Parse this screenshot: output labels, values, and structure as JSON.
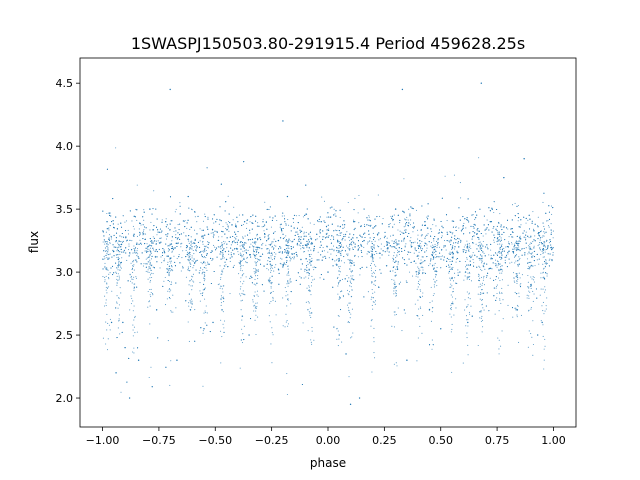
{
  "chart_data": {
    "type": "scatter",
    "title": "1SWASPJ150503.80-291915.4 Period 459628.25s",
    "xlabel": "phase",
    "ylabel": "flux",
    "xlim": [
      -1.1,
      1.1
    ],
    "ylim": [
      1.77,
      4.7
    ],
    "x_ticks": [
      -1.0,
      -0.75,
      -0.5,
      -0.25,
      0.0,
      0.25,
      0.5,
      0.75,
      1.0
    ],
    "x_tick_labels": [
      "−1.00",
      "−0.75",
      "−0.50",
      "−0.25",
      "0.00",
      "0.25",
      "0.50",
      "0.75",
      "1.00"
    ],
    "y_ticks": [
      2.0,
      2.5,
      3.0,
      3.5,
      4.0,
      4.5
    ],
    "y_tick_labels": [
      "2.0",
      "2.5",
      "3.0",
      "3.5",
      "4.0",
      "4.5"
    ],
    "grid": false,
    "legend": "none",
    "series": [
      {
        "color": "#1f77b4",
        "marker": "dot",
        "x_range": [
          -1.0,
          1.0
        ],
        "baseline_flux": 3.25,
        "band_flux_range": [
          2.95,
          3.55
        ],
        "x": [
          -0.98,
          -0.96,
          -0.94,
          -0.93,
          -0.91,
          -0.88,
          -0.86,
          -0.84,
          -0.8,
          -0.79,
          -0.76,
          -0.72,
          -0.7,
          -0.62,
          -0.61,
          -0.58,
          -0.55,
          -0.53,
          -0.47,
          -0.45,
          -0.41,
          -0.38,
          -0.37,
          -0.32,
          -0.28,
          -0.25,
          -0.22,
          -0.18,
          -0.15,
          -0.12,
          -0.08,
          -0.05,
          -0.03,
          0.02,
          0.05,
          0.08,
          0.1,
          0.12,
          0.16,
          0.2,
          0.22,
          0.26,
          0.3,
          0.33,
          0.37,
          0.41,
          0.43,
          0.47,
          0.5,
          0.53,
          0.55,
          0.58,
          0.61,
          0.64,
          0.66,
          0.68,
          0.72,
          0.76,
          0.8,
          0.84,
          0.87,
          0.9,
          0.93,
          0.96,
          0.99,
          -0.9,
          -0.67,
          -0.51,
          -0.35,
          -0.2,
          0.0,
          0.14,
          0.35,
          0.45,
          0.62,
          0.78,
          0.95
        ],
        "y": [
          3.4,
          2.6,
          2.2,
          3.1,
          2.6,
          2.0,
          3.3,
          2.3,
          3.2,
          3.5,
          2.7,
          3.4,
          4.45,
          3.6,
          2.7,
          3.2,
          2.55,
          3.3,
          2.7,
          3.1,
          3.3,
          2.65,
          3.4,
          3.0,
          3.3,
          3.15,
          3.25,
          3.6,
          3.35,
          3.1,
          2.85,
          3.3,
          3.4,
          3.1,
          2.5,
          2.35,
          1.95,
          3.2,
          3.25,
          3.35,
          3.3,
          3.05,
          3.5,
          4.45,
          3.2,
          2.8,
          3.4,
          3.2,
          2.55,
          3.3,
          2.75,
          3.2,
          3.0,
          2.65,
          3.3,
          4.5,
          3.4,
          3.3,
          3.2,
          2.7,
          3.9,
          2.9,
          2.5,
          2.95,
          3.3,
          2.4,
          2.3,
          2.6,
          2.5,
          4.2,
          3.0,
          2.0,
          2.3,
          2.7,
          2.6,
          3.75,
          2.6
        ]
      }
    ]
  }
}
